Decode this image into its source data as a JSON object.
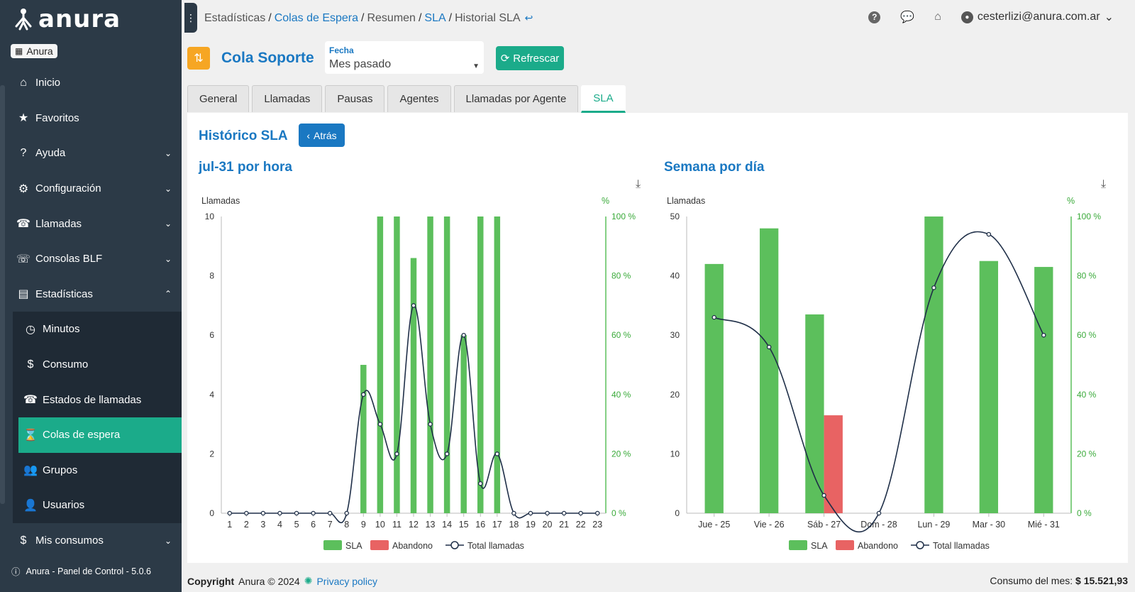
{
  "sidebar": {
    "logo": "anura",
    "tenant": "Anura",
    "items": [
      {
        "label": "Inicio",
        "icon": "home-icon"
      },
      {
        "label": "Favoritos",
        "icon": "star-icon"
      },
      {
        "label": "Ayuda",
        "icon": "question-icon"
      },
      {
        "label": "Configuración",
        "icon": "gear-icon"
      },
      {
        "label": "Llamadas",
        "icon": "phone-icon"
      },
      {
        "label": "Consolas BLF",
        "icon": "console-icon"
      },
      {
        "label": "Estadísticas",
        "icon": "chart-icon"
      }
    ],
    "subitems": [
      {
        "label": "Minutos",
        "icon": "clock-icon"
      },
      {
        "label": "Consumo",
        "icon": "dollar-icon"
      },
      {
        "label": "Estados de llamadas",
        "icon": "phone-icon"
      },
      {
        "label": "Colas de espera",
        "icon": "hourglass-icon"
      },
      {
        "label": "Grupos",
        "icon": "users-icon"
      },
      {
        "label": "Usuarios",
        "icon": "user-icon"
      }
    ],
    "mis_consumos": "Mis consumos",
    "footer": "Anura - Panel de Control - 5.0.6"
  },
  "breadcrumb": {
    "items": [
      "Estadísticas",
      "Colas de Espera",
      "Resumen",
      "SLA",
      "Historial SLA"
    ]
  },
  "user": {
    "email": "cesterlizi@anura.com.ar"
  },
  "queue": {
    "title": "Cola Soporte",
    "date_label": "Fecha",
    "date_value": "Mes pasado",
    "refresh_label": "Refrescar"
  },
  "tabs": [
    "General",
    "Llamadas",
    "Pausas",
    "Agentes",
    "Llamadas por Agente",
    "SLA"
  ],
  "content": {
    "title": "Histórico SLA",
    "back_label": "Atrás"
  },
  "chart_data": [
    {
      "type": "bar",
      "title": "jul-31 por hora",
      "categories": [
        "1",
        "2",
        "3",
        "4",
        "5",
        "6",
        "7",
        "8",
        "9",
        "10",
        "11",
        "12",
        "13",
        "14",
        "15",
        "16",
        "17",
        "18",
        "19",
        "20",
        "21",
        "22",
        "23"
      ],
      "ylabel": "Llamadas",
      "y2label": "%",
      "ylim": [
        0,
        10
      ],
      "y2lim": [
        0,
        100
      ],
      "yticks": [
        0,
        2,
        4,
        6,
        8,
        10
      ],
      "y2ticks": [
        "0 %",
        "20 %",
        "40 %",
        "60 %",
        "80 %",
        "100 %"
      ],
      "series": [
        {
          "name": "SLA",
          "axis": "y2",
          "color": "#5cbf5c",
          "values": [
            0,
            0,
            0,
            0,
            0,
            0,
            0,
            0,
            50,
            100,
            100,
            86,
            100,
            100,
            60,
            100,
            100,
            0,
            0,
            0,
            0,
            0,
            0
          ]
        },
        {
          "name": "Abandono",
          "axis": "y2",
          "color": "#e86363",
          "values": [
            0,
            0,
            0,
            0,
            0,
            0,
            0,
            0,
            0,
            0,
            0,
            0,
            0,
            0,
            0,
            0,
            0,
            0,
            0,
            0,
            0,
            0,
            0
          ]
        },
        {
          "name": "Total llamadas",
          "axis": "y",
          "type": "line",
          "color": "#1f2f48",
          "values": [
            0,
            0,
            0,
            0,
            0,
            0,
            0,
            0,
            4,
            3,
            2,
            7,
            3,
            2,
            6,
            1,
            2,
            0,
            0,
            0,
            0,
            0,
            0
          ]
        }
      ],
      "legend": "bottom"
    },
    {
      "type": "bar",
      "title": "Semana por día",
      "categories": [
        "Jue - 25",
        "Vie - 26",
        "Sáb - 27",
        "Dom - 28",
        "Lun - 29",
        "Mar - 30",
        "Mié - 31"
      ],
      "ylabel": "Llamadas",
      "y2label": "%",
      "ylim": [
        0,
        50
      ],
      "y2lim": [
        0,
        100
      ],
      "yticks": [
        0,
        10,
        20,
        30,
        40,
        50
      ],
      "y2ticks": [
        "0 %",
        "20 %",
        "40 %",
        "60 %",
        "80 %",
        "100 %"
      ],
      "series": [
        {
          "name": "SLA",
          "axis": "y2",
          "color": "#5cbf5c",
          "values": [
            84,
            96,
            67,
            0,
            100,
            85,
            83
          ]
        },
        {
          "name": "Abandono",
          "axis": "y2",
          "color": "#e86363",
          "values": [
            0,
            0,
            33,
            0,
            0,
            0,
            0
          ]
        },
        {
          "name": "Total llamadas",
          "axis": "y",
          "type": "line",
          "color": "#1f2f48",
          "values": [
            33,
            28,
            3,
            0,
            38,
            47,
            30
          ]
        }
      ],
      "legend": "bottom"
    }
  ],
  "footer": {
    "copyright_bold": "Copyright",
    "copyright_rest": "Anura © 2024",
    "privacy": "Privacy policy",
    "consumo_label": "Consumo del mes:",
    "consumo_value": "$ 15.521,93"
  }
}
